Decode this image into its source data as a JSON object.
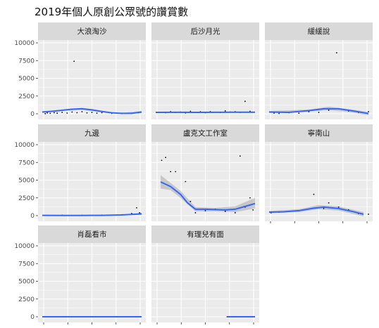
{
  "chart_data": {
    "type": "scatter",
    "title": "2019年個人原創公眾號的讚賞數",
    "xlabel": "",
    "ylabel": "",
    "ylim": [
      0,
      10000
    ],
    "y_ticks": [
      0,
      2500,
      5000,
      7500,
      10000
    ],
    "y_tick_labels": [
      "0",
      "2500",
      "5000",
      "7500",
      "10000"
    ],
    "x_ticks_shown": false,
    "grid": true,
    "smoother": "loess with confidence band",
    "colors": {
      "panel_bg": "#EBEBEB",
      "strip_bg": "#D9D9D9",
      "grid": "#FFFFFF",
      "line": "#3366FF",
      "band": "#999999",
      "points": "#000000"
    },
    "facets": [
      {
        "name": "大浪淘沙",
        "points": [
          [
            0.32,
            7400
          ],
          [
            0.03,
            20
          ],
          [
            0.05,
            120
          ],
          [
            0.08,
            60
          ],
          [
            0.12,
            150
          ],
          [
            0.15,
            80
          ],
          [
            0.2,
            200
          ],
          [
            0.25,
            100
          ],
          [
            0.3,
            250
          ],
          [
            0.35,
            150
          ],
          [
            0.4,
            300
          ],
          [
            0.45,
            120
          ],
          [
            0.5,
            200
          ],
          [
            0.55,
            80
          ],
          [
            0.6,
            150
          ],
          [
            0.7,
            60
          ],
          [
            0.8,
            40
          ],
          [
            0.9,
            80
          ],
          [
            0.97,
            150
          ]
        ],
        "line": [
          [
            0,
            250
          ],
          [
            0.1,
            350
          ],
          [
            0.2,
            500
          ],
          [
            0.3,
            640
          ],
          [
            0.4,
            700
          ],
          [
            0.5,
            560
          ],
          [
            0.6,
            320
          ],
          [
            0.7,
            130
          ],
          [
            0.8,
            60
          ],
          [
            0.9,
            60
          ],
          [
            1.0,
            250
          ]
        ],
        "band": [
          [
            0,
            140,
            360
          ],
          [
            0.2,
            420,
            580
          ],
          [
            0.4,
            540,
            860
          ],
          [
            0.6,
            220,
            420
          ],
          [
            0.8,
            10,
            110
          ],
          [
            1.0,
            100,
            400
          ]
        ]
      },
      {
        "name": "后沙月光",
        "points": [
          [
            0.9,
            1750
          ],
          [
            0.05,
            200
          ],
          [
            0.1,
            150
          ],
          [
            0.15,
            300
          ],
          [
            0.2,
            180
          ],
          [
            0.25,
            250
          ],
          [
            0.3,
            120
          ],
          [
            0.35,
            350
          ],
          [
            0.4,
            200
          ],
          [
            0.45,
            280
          ],
          [
            0.5,
            150
          ],
          [
            0.55,
            300
          ],
          [
            0.6,
            220
          ],
          [
            0.65,
            180
          ],
          [
            0.7,
            400
          ],
          [
            0.75,
            250
          ],
          [
            0.8,
            300
          ],
          [
            0.85,
            200
          ],
          [
            0.95,
            350
          ]
        ],
        "line": [
          [
            0,
            200
          ],
          [
            0.2,
            210
          ],
          [
            0.4,
            200
          ],
          [
            0.6,
            210
          ],
          [
            0.8,
            220
          ],
          [
            1.0,
            220
          ]
        ],
        "band": [
          [
            0,
            120,
            280
          ],
          [
            0.5,
            150,
            270
          ],
          [
            1.0,
            140,
            300
          ]
        ]
      },
      {
        "name": "緩緩說",
        "points": [
          [
            0.68,
            8600
          ],
          [
            0.05,
            100
          ],
          [
            0.1,
            50
          ],
          [
            0.2,
            150
          ],
          [
            0.3,
            80
          ],
          [
            0.4,
            300
          ],
          [
            0.5,
            200
          ],
          [
            0.6,
            500
          ],
          [
            0.7,
            700
          ],
          [
            0.8,
            400
          ],
          [
            0.9,
            200
          ],
          [
            1.0,
            300
          ]
        ],
        "line": [
          [
            0,
            250
          ],
          [
            0.2,
            200
          ],
          [
            0.4,
            450
          ],
          [
            0.55,
            700
          ],
          [
            0.7,
            700
          ],
          [
            0.85,
            400
          ],
          [
            1.0,
            30
          ]
        ],
        "band": [
          [
            0,
            120,
            380
          ],
          [
            0.4,
            300,
            600
          ],
          [
            0.6,
            500,
            1000
          ],
          [
            0.8,
            250,
            650
          ],
          [
            1.0,
            -200,
            260
          ]
        ]
      },
      {
        "name": "九邊",
        "points": [
          [
            0.05,
            40
          ],
          [
            0.2,
            60
          ],
          [
            0.4,
            50
          ],
          [
            0.6,
            70
          ],
          [
            0.8,
            120
          ],
          [
            0.9,
            300
          ],
          [
            0.95,
            1100
          ],
          [
            0.98,
            400
          ]
        ],
        "line": [
          [
            0,
            40
          ],
          [
            0.2,
            30
          ],
          [
            0.4,
            30
          ],
          [
            0.6,
            40
          ],
          [
            0.8,
            100
          ],
          [
            1.0,
            250
          ]
        ],
        "band": [
          [
            0,
            0,
            80
          ],
          [
            0.5,
            10,
            60
          ],
          [
            0.8,
            50,
            160
          ],
          [
            1.0,
            100,
            400
          ]
        ]
      },
      {
        "name": "盧克文工作室",
        "points": [
          [
            0.06,
            7800
          ],
          [
            0.1,
            8200
          ],
          [
            0.15,
            6200
          ],
          [
            0.2,
            6200
          ],
          [
            0.3,
            4800
          ],
          [
            0.35,
            2000
          ],
          [
            0.4,
            400
          ],
          [
            0.5,
            700
          ],
          [
            0.6,
            900
          ],
          [
            0.7,
            600
          ],
          [
            0.8,
            400
          ],
          [
            0.85,
            8400
          ],
          [
            0.9,
            1200
          ],
          [
            0.95,
            2500
          ],
          [
            0.98,
            800
          ]
        ],
        "line": [
          [
            0.05,
            4750
          ],
          [
            0.15,
            4100
          ],
          [
            0.25,
            3000
          ],
          [
            0.32,
            1800
          ],
          [
            0.4,
            900
          ],
          [
            0.5,
            900
          ],
          [
            0.6,
            850
          ],
          [
            0.7,
            800
          ],
          [
            0.8,
            900
          ],
          [
            0.9,
            1300
          ],
          [
            1.0,
            1700
          ]
        ],
        "band": [
          [
            0.05,
            3800,
            5700
          ],
          [
            0.15,
            3600,
            4600
          ],
          [
            0.25,
            2500,
            3500
          ],
          [
            0.4,
            600,
            1200
          ],
          [
            0.6,
            600,
            1100
          ],
          [
            0.8,
            500,
            1300
          ],
          [
            1.0,
            1000,
            2500
          ]
        ]
      },
      {
        "name": "寧南山",
        "points": [
          [
            0.02,
            400
          ],
          [
            0.1,
            500
          ],
          [
            0.2,
            600
          ],
          [
            0.3,
            700
          ],
          [
            0.45,
            3000
          ],
          [
            0.55,
            1000
          ],
          [
            0.6,
            1800
          ],
          [
            0.7,
            1200
          ],
          [
            0.8,
            800
          ],
          [
            0.9,
            300
          ],
          [
            1.0,
            200
          ]
        ],
        "line": [
          [
            0,
            500
          ],
          [
            0.15,
            550
          ],
          [
            0.3,
            700
          ],
          [
            0.45,
            1050
          ],
          [
            0.55,
            1200
          ],
          [
            0.7,
            1000
          ],
          [
            0.85,
            550
          ],
          [
            0.95,
            200
          ]
        ],
        "band": [
          [
            0,
            350,
            650
          ],
          [
            0.3,
            500,
            900
          ],
          [
            0.5,
            900,
            1500
          ],
          [
            0.7,
            700,
            1300
          ],
          [
            0.95,
            -100,
            500
          ]
        ]
      },
      {
        "name": "肖磊看市",
        "points": [
          [
            0.05,
            0
          ],
          [
            0.2,
            0
          ],
          [
            0.4,
            0
          ],
          [
            0.6,
            0
          ],
          [
            0.8,
            0
          ],
          [
            0.98,
            0
          ]
        ],
        "line": [
          [
            0,
            0
          ],
          [
            1.0,
            0
          ]
        ],
        "band": [
          [
            0,
            0,
            0
          ],
          [
            1.0,
            0,
            0
          ]
        ]
      },
      {
        "name": "有理兒有面",
        "points": [
          [
            0.72,
            0
          ],
          [
            0.8,
            0
          ],
          [
            0.9,
            0
          ],
          [
            0.98,
            0
          ]
        ],
        "line": [
          [
            0.72,
            0
          ],
          [
            1.0,
            0
          ]
        ],
        "band": [
          [
            0.72,
            0,
            0
          ],
          [
            1.0,
            0,
            0
          ]
        ]
      }
    ]
  }
}
